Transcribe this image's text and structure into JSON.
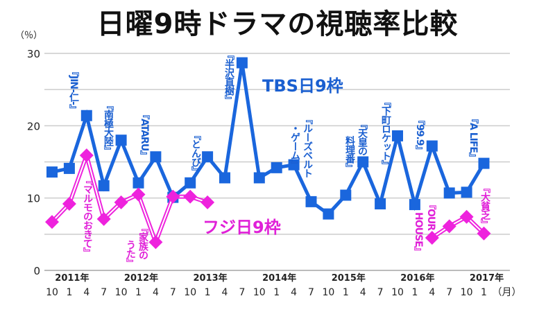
{
  "chart_data": {
    "type": "line",
    "title": "日曜9時ドラマの視聴率比較",
    "ylabel": "（％）",
    "xlabel": "（月）",
    "ylim": [
      0,
      30
    ],
    "yticks": [
      0,
      10,
      20,
      30
    ],
    "grid": true,
    "x": [
      "10",
      "1",
      "4",
      "7",
      "10",
      "1",
      "4",
      "7",
      "10",
      "1",
      "4",
      "7",
      "10",
      "1",
      "4",
      "7",
      "10",
      "1",
      "4",
      "7",
      "10",
      "1",
      "4",
      "7",
      "10",
      "1"
    ],
    "year_labels": [
      {
        "label": "2011年",
        "index": 1
      },
      {
        "label": "2012年",
        "index": 5
      },
      {
        "label": "2013年",
        "index": 9
      },
      {
        "label": "2014年",
        "index": 13
      },
      {
        "label": "2015年",
        "index": 17
      },
      {
        "label": "2016年",
        "index": 21
      },
      {
        "label": "2017年",
        "index": 25
      }
    ],
    "series": [
      {
        "name": "TBS日9枠",
        "color": "#1a66dd",
        "values": [
          13.6,
          14.1,
          21.4,
          11.7,
          18.0,
          12.1,
          15.7,
          10.1,
          12.1,
          15.7,
          12.8,
          28.7,
          12.8,
          14.2,
          14.6,
          9.5,
          7.8,
          10.4,
          15.0,
          9.2,
          18.6,
          9.1,
          17.2,
          10.7,
          10.8,
          14.8
        ]
      },
      {
        "name": "フジ日9枠",
        "color": "#ee22dd",
        "values": [
          6.7,
          9.2,
          15.9,
          7.1,
          9.4,
          10.5,
          3.9,
          10.2,
          10.2,
          9.4,
          null,
          null,
          null,
          null,
          null,
          null,
          null,
          null,
          null,
          null,
          null,
          null,
          4.5,
          6.1,
          7.4,
          5.1
        ]
      }
    ],
    "annotations": {
      "tbs": [
        "『JIN-仁-』",
        "『南極大陸』",
        "『ATARU』",
        "『とんび』",
        "『半沢直樹』",
        "『ルーズベルト",
        "・ゲーム』",
        "『天皇の",
        "料理番』",
        "『下町ロケット』",
        "『99.9』",
        "『A LIFE』"
      ],
      "fuji": [
        "『マルモのおきて』",
        "『家族の",
        "うた』",
        "『OUR",
        "HOUSE』",
        "『大貧乏』"
      ]
    }
  }
}
